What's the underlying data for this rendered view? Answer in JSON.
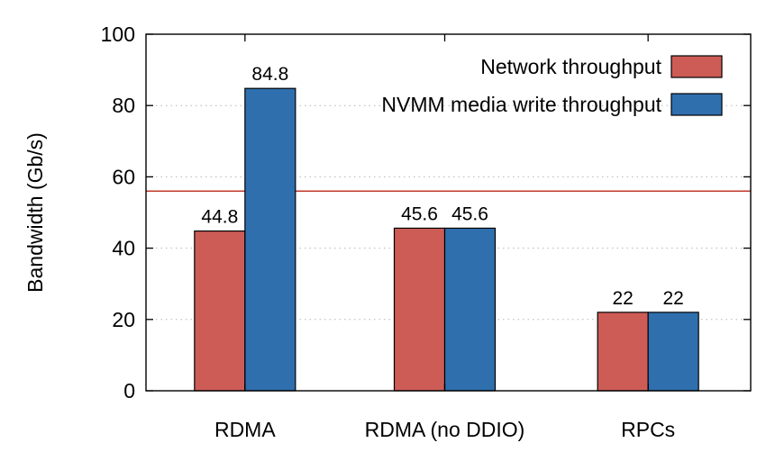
{
  "chart_data": {
    "type": "bar",
    "categories": [
      "RDMA",
      "RDMA (no DDIO)",
      "RPCs"
    ],
    "series": [
      {
        "name": "Network throughput",
        "values": [
          44.8,
          45.6,
          22
        ],
        "labels": [
          "44.8",
          "45.6",
          "22"
        ],
        "color": "#cd5c57"
      },
      {
        "name": "NVMM media write throughput",
        "values": [
          84.8,
          45.6,
          22
        ],
        "labels": [
          "84.8",
          "45.6",
          "22"
        ],
        "color": "#2f6fae"
      }
    ],
    "ylabel": "Bandwidth (Gb/s)",
    "xlabel": "",
    "ylim": [
      0,
      100
    ],
    "yticks": [
      0,
      20,
      40,
      60,
      80,
      100
    ],
    "ytick_labels": [
      "0",
      "20",
      "40",
      "60",
      "80",
      "100"
    ],
    "grid": "dotted horizontal",
    "legend_position": "top-right",
    "reference_line": {
      "value": 56,
      "color": "#c0392b"
    }
  }
}
